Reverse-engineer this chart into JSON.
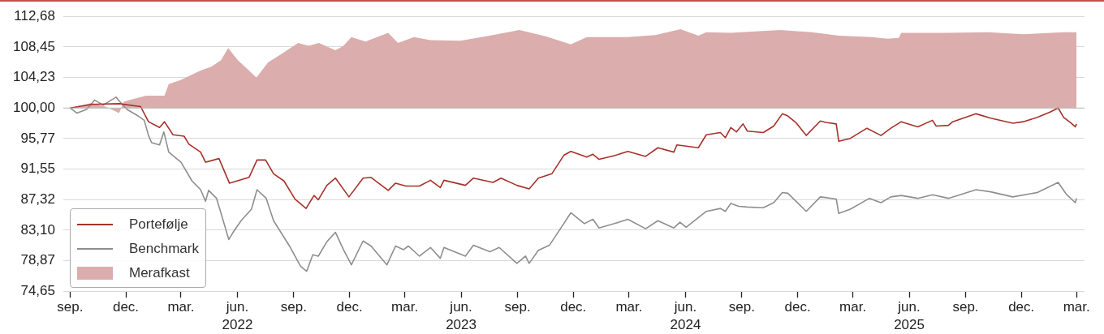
{
  "chart_data": {
    "type": "line",
    "xlim": [
      "2021-08-21",
      "2026-03-14"
    ],
    "xticks": [
      {
        "value": "2021-09-01",
        "label": "sep."
      },
      {
        "value": "2021-12-01",
        "label": "dec."
      },
      {
        "value": "2022-03-01",
        "label": "mar."
      },
      {
        "value": "2022-06-01",
        "label": "jun."
      },
      {
        "value": "2022-09-01",
        "label": "sep."
      },
      {
        "value": "2022-12-01",
        "label": "dec."
      },
      {
        "value": "2023-03-01",
        "label": "mar."
      },
      {
        "value": "2023-06-01",
        "label": "jun."
      },
      {
        "value": "2023-09-01",
        "label": "sep."
      },
      {
        "value": "2023-12-01",
        "label": "dec."
      },
      {
        "value": "2024-03-01",
        "label": "mar."
      },
      {
        "value": "2024-06-01",
        "label": "jun."
      },
      {
        "value": "2024-09-01",
        "label": "sep."
      },
      {
        "value": "2024-12-01",
        "label": "dec."
      },
      {
        "value": "2025-03-01",
        "label": "mar."
      },
      {
        "value": "2025-06-01",
        "label": "jun."
      },
      {
        "value": "2025-09-01",
        "label": "sep."
      },
      {
        "value": "2025-12-01",
        "label": "dec."
      },
      {
        "value": "2026-03-01",
        "label": "mar."
      }
    ],
    "x2lim": [
      "2021-08-21",
      "2026-03-14"
    ],
    "x2ticks": [
      {
        "value": "2022-06-01",
        "label": "2022"
      },
      {
        "value": "2023-06-01",
        "label": "2023"
      },
      {
        "value": "2024-06-01",
        "label": "2024"
      },
      {
        "value": "2025-06-01",
        "label": "2025"
      }
    ],
    "ylim": [
      74.65,
      112.68
    ],
    "yticks": [
      {
        "value": 74.65,
        "label": "74,65"
      },
      {
        "value": 78.87,
        "label": "78,87"
      },
      {
        "value": 83.1,
        "label": "83,10"
      },
      {
        "value": 87.32,
        "label": "87,32"
      },
      {
        "value": 91.55,
        "label": "91,55"
      },
      {
        "value": 95.77,
        "label": "95,77"
      },
      {
        "value": 100,
        "label": "100,00"
      },
      {
        "value": 104.23,
        "label": "104,23"
      },
      {
        "value": 108.45,
        "label": "108,45"
      },
      {
        "value": 112.68,
        "label": "112,68"
      }
    ],
    "grid": "y",
    "ref_lines": [
      {
        "axis": "y",
        "value": 100,
        "color": "#bdbdbd"
      }
    ],
    "legend": "bottom left",
    "marker": "none",
    "series": [
      {
        "name": "Portefølje",
        "type": "line",
        "color": "#a8302a",
        "x": [
          "2021-09-01",
          "2021-10-06",
          "2021-11-20",
          "2021-12-25",
          "2022-01-07",
          "2022-01-25",
          "2022-02-02",
          "2022-02-16",
          "2022-03-06",
          "2022-03-14",
          "2022-04-02",
          "2022-04-10",
          "2022-05-02",
          "2022-05-19",
          "2022-06-20",
          "2022-07-03",
          "2022-07-17",
          "2022-07-30",
          "2022-08-16",
          "2022-09-03",
          "2022-09-21",
          "2022-10-04",
          "2022-10-11",
          "2022-10-25",
          "2022-11-08",
          "2022-11-30",
          "2022-12-23",
          "2023-01-05",
          "2023-02-02",
          "2023-02-14",
          "2023-03-03",
          "2023-03-25",
          "2023-04-12",
          "2023-04-28",
          "2023-05-04",
          "2023-06-08",
          "2023-06-21",
          "2023-07-23",
          "2023-08-05",
          "2023-08-31",
          "2023-09-20",
          "2023-10-05",
          "2023-10-27",
          "2023-11-16",
          "2023-11-27",
          "2023-12-23",
          "2024-01-02",
          "2024-01-12",
          "2024-02-06",
          "2024-02-28",
          "2024-03-28",
          "2024-04-17",
          "2024-05-13",
          "2024-05-18",
          "2024-06-22",
          "2024-07-05",
          "2024-07-28",
          "2024-08-05",
          "2024-08-14",
          "2024-08-23",
          "2024-09-03",
          "2024-09-10",
          "2024-10-06",
          "2024-10-23",
          "2024-11-06",
          "2024-11-15",
          "2024-11-28",
          "2024-12-15",
          "2025-01-07",
          "2025-01-16",
          "2025-02-02",
          "2025-02-06",
          "2025-02-25",
          "2025-03-24",
          "2025-04-16",
          "2025-05-02",
          "2025-05-19",
          "2025-06-15",
          "2025-07-09",
          "2025-07-15",
          "2025-08-04",
          "2025-08-11",
          "2025-09-18",
          "2025-10-12",
          "2025-11-17",
          "2025-12-04",
          "2025-12-27",
          "2026-01-16",
          "2026-01-30",
          "2026-02-08",
          "2026-02-19",
          "2026-02-27",
          "2026-03-01"
        ],
        "values": [
          100.0,
          100.5,
          100.6,
          100.2,
          98.1,
          97.3,
          98.1,
          96.3,
          96.1,
          95.0,
          93.9,
          92.5,
          93.0,
          89.6,
          90.4,
          92.8,
          92.8,
          90.9,
          89.9,
          87.4,
          86.1,
          87.9,
          87.3,
          89.3,
          90.3,
          87.7,
          90.3,
          90.4,
          88.6,
          89.6,
          89.2,
          89.2,
          90.0,
          89.0,
          90.0,
          89.3,
          90.3,
          89.7,
          90.3,
          89.3,
          88.8,
          90.3,
          90.9,
          93.5,
          94.0,
          93.2,
          93.6,
          92.9,
          93.4,
          94.0,
          93.3,
          94.5,
          93.9,
          94.9,
          94.5,
          96.3,
          96.6,
          95.9,
          97.3,
          96.7,
          97.8,
          96.8,
          96.6,
          97.5,
          99.2,
          98.9,
          98.0,
          96.2,
          98.2,
          98.0,
          97.8,
          95.4,
          95.8,
          97.2,
          96.2,
          97.2,
          98.1,
          97.4,
          98.3,
          97.5,
          97.6,
          98.1,
          99.2,
          98.6,
          97.9,
          98.1,
          98.7,
          99.4,
          100.0,
          98.7,
          98.0,
          97.4,
          97.8
        ]
      },
      {
        "name": "Benchmark",
        "type": "line",
        "color": "#8e8e8e",
        "x": [
          "2021-09-01",
          "2021-09-12",
          "2021-09-28",
          "2021-10-11",
          "2021-10-25",
          "2021-11-15",
          "2021-11-21",
          "2021-12-03",
          "2021-12-21",
          "2021-12-31",
          "2022-01-07",
          "2022-01-12",
          "2022-01-25",
          "2022-02-01",
          "2022-02-09",
          "2022-03-01",
          "2022-03-19",
          "2022-04-02",
          "2022-04-10",
          "2022-04-15",
          "2022-04-28",
          "2022-05-18",
          "2022-05-25",
          "2022-06-07",
          "2022-06-24",
          "2022-07-03",
          "2022-07-18",
          "2022-07-30",
          "2022-08-25",
          "2022-09-12",
          "2022-09-22",
          "2022-10-02",
          "2022-10-11",
          "2022-10-25",
          "2022-11-08",
          "2022-11-21",
          "2022-12-04",
          "2022-12-23",
          "2023-01-05",
          "2023-01-31",
          "2023-02-14",
          "2023-02-27",
          "2023-03-07",
          "2023-03-25",
          "2023-04-12",
          "2023-04-28",
          "2023-05-04",
          "2023-06-08",
          "2023-06-21",
          "2023-07-18",
          "2023-08-02",
          "2023-08-31",
          "2023-09-14",
          "2023-09-20",
          "2023-10-05",
          "2023-10-23",
          "2023-11-10",
          "2023-11-27",
          "2023-12-19",
          "2024-01-02",
          "2024-01-12",
          "2024-02-06",
          "2024-02-28",
          "2024-03-28",
          "2024-04-17",
          "2024-05-13",
          "2024-05-23",
          "2024-06-02",
          "2024-07-05",
          "2024-07-28",
          "2024-08-05",
          "2024-08-14",
          "2024-08-27",
          "2024-09-10",
          "2024-10-06",
          "2024-10-23",
          "2024-11-06",
          "2024-11-15",
          "2024-12-15",
          "2025-01-07",
          "2025-02-02",
          "2025-02-06",
          "2025-02-25",
          "2025-03-28",
          "2025-04-16",
          "2025-05-02",
          "2025-05-19",
          "2025-06-15",
          "2025-07-09",
          "2025-08-04",
          "2025-09-18",
          "2025-10-12",
          "2025-11-17",
          "2025-12-27",
          "2026-01-30",
          "2026-02-12",
          "2026-02-27",
          "2026-03-01"
        ],
        "values": [
          100.0,
          99.3,
          99.8,
          101.1,
          100.4,
          101.5,
          100.9,
          99.8,
          98.9,
          98.3,
          96.2,
          95.2,
          94.9,
          96.7,
          93.9,
          92.5,
          89.9,
          88.7,
          87.1,
          88.6,
          87.5,
          81.8,
          82.8,
          84.4,
          86.0,
          88.7,
          87.5,
          84.4,
          80.9,
          78.1,
          77.4,
          79.7,
          79.5,
          81.5,
          82.8,
          80.4,
          78.3,
          81.6,
          80.9,
          78.3,
          80.9,
          80.4,
          80.9,
          79.5,
          80.7,
          79.2,
          80.7,
          79.5,
          81.0,
          80.1,
          80.7,
          78.5,
          79.5,
          78.5,
          80.3,
          81.0,
          83.3,
          85.5,
          84.0,
          84.6,
          83.4,
          84.0,
          84.6,
          83.3,
          84.4,
          83.4,
          84.2,
          83.5,
          85.7,
          86.1,
          85.7,
          86.8,
          86.4,
          86.3,
          86.2,
          86.9,
          88.3,
          88.2,
          85.7,
          87.7,
          87.4,
          85.4,
          86.0,
          87.5,
          86.9,
          87.7,
          87.9,
          87.5,
          88.0,
          87.5,
          88.7,
          88.4,
          87.7,
          88.3,
          89.7,
          88.1,
          86.9,
          87.5
        ]
      },
      {
        "name": "Merafkast",
        "type": "area",
        "color": "#dbadad",
        "x": [
          "2021-09-01",
          "2021-10-06",
          "2021-10-29",
          "2021-11-20",
          "2021-11-28",
          "2022-01-03",
          "2022-02-02",
          "2022-02-09",
          "2022-03-01",
          "2022-04-02",
          "2022-04-19",
          "2022-05-05",
          "2022-05-17",
          "2022-06-02",
          "2022-06-20",
          "2022-07-02",
          "2022-07-21",
          "2022-08-12",
          "2022-09-08",
          "2022-09-25",
          "2022-10-12",
          "2022-11-08",
          "2022-11-21",
          "2022-12-04",
          "2022-12-27",
          "2023-02-02",
          "2023-02-18",
          "2023-03-16",
          "2023-04-12",
          "2023-05-31",
          "2023-07-23",
          "2023-09-04",
          "2023-10-18",
          "2023-11-27",
          "2023-12-23",
          "2024-02-28",
          "2024-04-13",
          "2024-05-24",
          "2024-06-22",
          "2024-07-05",
          "2024-08-14",
          "2024-11-02",
          "2024-12-24",
          "2025-02-06",
          "2025-04-01",
          "2025-04-27",
          "2025-05-15",
          "2025-05-19",
          "2025-08-03",
          "2025-10-08",
          "2025-12-04",
          "2026-02-08",
          "2026-03-01"
        ],
        "values": [
          100.0,
          100.7,
          100.2,
          99.3,
          100.9,
          101.7,
          101.7,
          103.3,
          103.9,
          105.2,
          105.7,
          106.6,
          108.3,
          106.6,
          105.2,
          104.2,
          106.3,
          107.5,
          109.0,
          108.6,
          109.0,
          108.0,
          108.6,
          109.8,
          109.2,
          110.4,
          109.0,
          109.8,
          109.4,
          109.3,
          110.1,
          110.8,
          109.9,
          108.8,
          109.8,
          109.8,
          110.1,
          110.9,
          110.0,
          110.5,
          110.4,
          110.8,
          110.5,
          110.0,
          109.8,
          109.6,
          109.7,
          110.4,
          110.4,
          110.5,
          110.2,
          110.5,
          110.5
        ]
      }
    ]
  }
}
